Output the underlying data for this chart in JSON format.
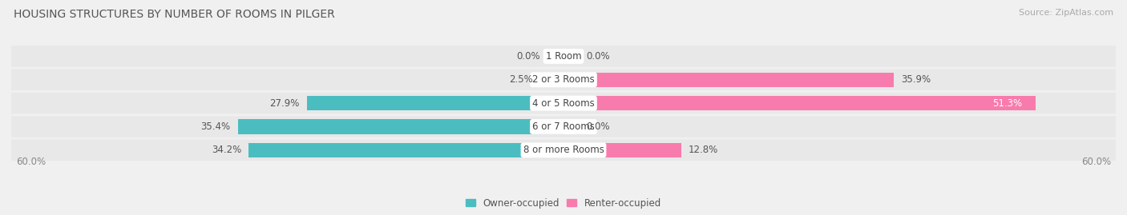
{
  "title": "HOUSING STRUCTURES BY NUMBER OF ROOMS IN PILGER",
  "source": "Source: ZipAtlas.com",
  "categories": [
    "1 Room",
    "2 or 3 Rooms",
    "4 or 5 Rooms",
    "6 or 7 Rooms",
    "8 or more Rooms"
  ],
  "owner_values": [
    0.0,
    2.5,
    27.9,
    35.4,
    34.2
  ],
  "renter_values": [
    0.0,
    35.9,
    51.3,
    0.0,
    12.8
  ],
  "owner_color": "#4BBDC0",
  "renter_color": "#F87BAD",
  "axis_max": 60.0,
  "background_color": "#f0f0f0",
  "bar_bg_color": "#e8e8e8",
  "bar_height": 0.62,
  "title_fontsize": 10,
  "source_fontsize": 8,
  "tick_fontsize": 8.5,
  "bar_label_fontsize": 8.5,
  "cat_label_fontsize": 8.5,
  "row_bg_color": "#ececec",
  "row_alt_color": "#e4e4e4"
}
